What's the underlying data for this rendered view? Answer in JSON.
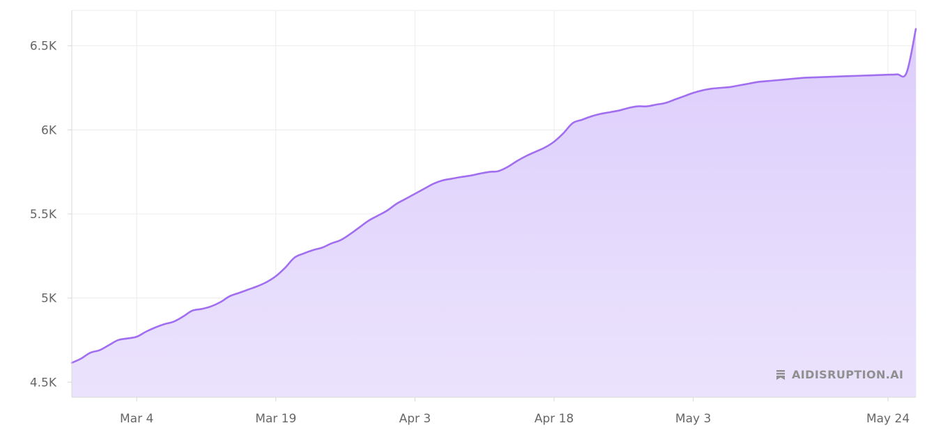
{
  "chart_data": {
    "type": "area",
    "title": "",
    "xlabel": "",
    "ylabel": "",
    "x_ticks": [
      "Mar 4",
      "Mar 19",
      "Apr 3",
      "Apr 18",
      "May 3",
      "May 24"
    ],
    "y_ticks": [
      "4.5K",
      "5K",
      "5.5K",
      "6K",
      "6.5K"
    ],
    "y_tick_values": [
      4500,
      5000,
      5500,
      6000,
      6500
    ],
    "ylim": [
      4410,
      6710
    ],
    "xlim": [
      "2024-02-26",
      "2024-05-27"
    ],
    "grid": true,
    "legend": "none",
    "colors": {
      "line": "#a16ef0",
      "fill": "#e1d4fb",
      "grid": "#ececec",
      "axis": "#d8d8d8"
    },
    "series": [
      {
        "x": [
          "2024-02-26",
          "2024-02-27",
          "2024-02-28",
          "2024-02-29",
          "2024-03-01",
          "2024-03-02",
          "2024-03-03",
          "2024-03-04",
          "2024-03-05",
          "2024-03-06",
          "2024-03-07",
          "2024-03-08",
          "2024-03-09",
          "2024-03-10",
          "2024-03-11",
          "2024-03-12",
          "2024-03-13",
          "2024-03-14",
          "2024-03-15",
          "2024-03-16",
          "2024-03-17",
          "2024-03-18",
          "2024-03-19",
          "2024-03-20",
          "2024-03-21",
          "2024-03-22",
          "2024-03-23",
          "2024-03-24",
          "2024-03-25",
          "2024-03-26",
          "2024-03-27",
          "2024-03-28",
          "2024-03-29",
          "2024-03-30",
          "2024-03-31",
          "2024-04-01",
          "2024-04-02",
          "2024-04-03",
          "2024-04-04",
          "2024-04-05",
          "2024-04-06",
          "2024-04-07",
          "2024-04-08",
          "2024-04-09",
          "2024-04-10",
          "2024-04-11",
          "2024-04-12",
          "2024-04-13",
          "2024-04-14",
          "2024-04-15",
          "2024-04-16",
          "2024-04-17",
          "2024-04-18",
          "2024-04-19",
          "2024-04-20",
          "2024-04-21",
          "2024-04-22",
          "2024-04-23",
          "2024-04-24",
          "2024-04-25",
          "2024-04-26",
          "2024-04-27",
          "2024-04-28",
          "2024-04-29",
          "2024-04-30",
          "2024-05-01",
          "2024-05-02",
          "2024-05-03",
          "2024-05-04",
          "2024-05-05",
          "2024-05-06",
          "2024-05-07",
          "2024-05-08",
          "2024-05-09",
          "2024-05-10",
          "2024-05-11",
          "2024-05-12",
          "2024-05-13",
          "2024-05-14",
          "2024-05-15",
          "2024-05-16",
          "2024-05-17",
          "2024-05-18",
          "2024-05-19",
          "2024-05-20",
          "2024-05-21",
          "2024-05-22",
          "2024-05-23",
          "2024-05-24",
          "2024-05-25",
          "2024-05-26",
          "2024-05-27"
        ],
        "values": [
          4615,
          4640,
          4675,
          4690,
          4720,
          4750,
          4760,
          4770,
          4800,
          4825,
          4845,
          4860,
          4890,
          4925,
          4935,
          4950,
          4975,
          5010,
          5030,
          5050,
          5070,
          5095,
          5130,
          5180,
          5240,
          5265,
          5285,
          5300,
          5325,
          5345,
          5380,
          5420,
          5460,
          5490,
          5520,
          5560,
          5590,
          5620,
          5650,
          5680,
          5700,
          5710,
          5720,
          5728,
          5740,
          5750,
          5755,
          5780,
          5815,
          5845,
          5870,
          5895,
          5930,
          5980,
          6040,
          6060,
          6080,
          6095,
          6105,
          6115,
          6130,
          6140,
          6140,
          6150,
          6160,
          6180,
          6200,
          6220,
          6235,
          6245,
          6250,
          6255,
          6265,
          6275,
          6285,
          6290,
          6295,
          6300,
          6305,
          6310,
          6312,
          6314,
          6316,
          6318,
          6320,
          6322,
          6324,
          6326,
          6328,
          6330,
          6340,
          6600
        ]
      }
    ]
  },
  "watermark": {
    "text": "AIDISRUPTION.AI",
    "icon": "bookmark-stack-icon"
  }
}
